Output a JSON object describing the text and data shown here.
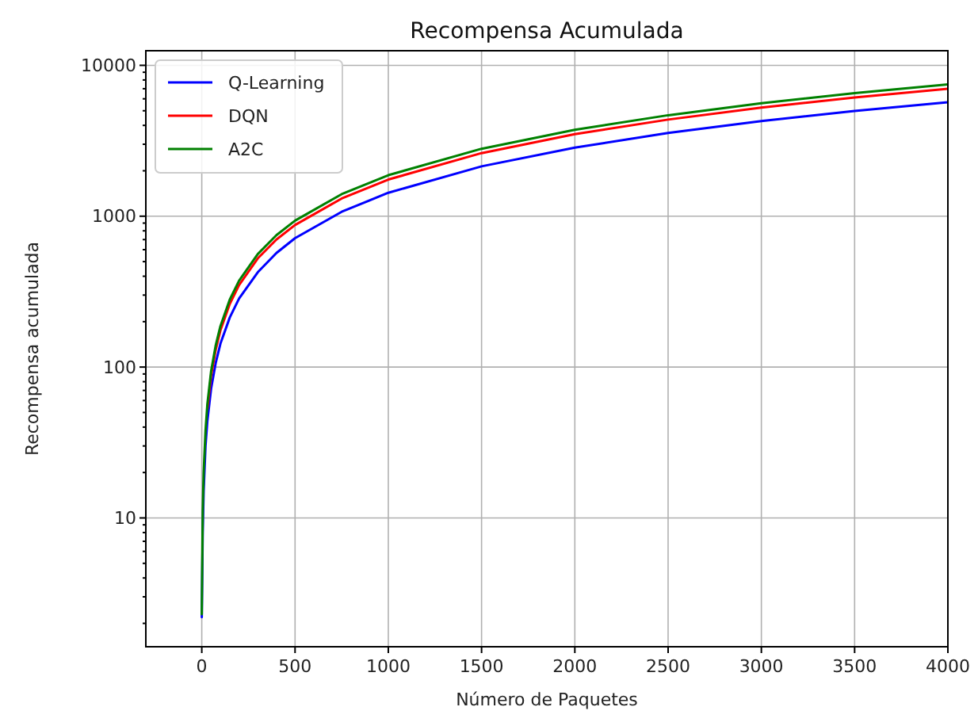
{
  "chart_data": {
    "type": "line",
    "title": "Recompensa Acumulada",
    "xlabel": "Número de Paquetes",
    "ylabel": "Recompensa acumulada",
    "log": "y",
    "grid": true,
    "legend": "top left",
    "line_style": "solid",
    "xlim": [
      -300,
      4000
    ],
    "xticks": [
      0,
      500,
      1000,
      1500,
      2000,
      2500,
      3000,
      3500,
      4000
    ],
    "ylim": [
      1.4,
      12500
    ],
    "yticks": [
      {
        "value": 2,
        "label": null
      },
      {
        "value": 3,
        "label": null
      },
      {
        "value": 4,
        "label": null
      },
      {
        "value": 5,
        "label": null
      },
      {
        "value": 6,
        "label": null
      },
      {
        "value": 7,
        "label": null
      },
      {
        "value": 8,
        "label": null
      },
      {
        "value": 9,
        "label": null
      },
      10,
      {
        "value": 20,
        "label": null
      },
      {
        "value": 30,
        "label": null
      },
      {
        "value": 40,
        "label": null
      },
      {
        "value": 50,
        "label": null
      },
      {
        "value": 60,
        "label": null
      },
      {
        "value": 70,
        "label": null
      },
      {
        "value": 80,
        "label": null
      },
      {
        "value": 90,
        "label": null
      },
      100,
      {
        "value": 200,
        "label": null
      },
      {
        "value": 300,
        "label": null
      },
      {
        "value": 400,
        "label": null
      },
      {
        "value": 500,
        "label": null
      },
      {
        "value": 600,
        "label": null
      },
      {
        "value": 700,
        "label": null
      },
      {
        "value": 800,
        "label": null
      },
      {
        "value": 900,
        "label": null
      },
      1000,
      {
        "value": 2000,
        "label": null
      },
      {
        "value": 3000,
        "label": null
      },
      {
        "value": 4000,
        "label": null
      },
      {
        "value": 5000,
        "label": null
      },
      {
        "value": 6000,
        "label": null
      },
      {
        "value": 7000,
        "label": null
      },
      {
        "value": 8000,
        "label": null
      },
      {
        "value": 9000,
        "label": null
      },
      10000
    ],
    "x": [
      0,
      5,
      10,
      20,
      30,
      50,
      75,
      100,
      150,
      200,
      300,
      400,
      500,
      750,
      1000,
      1500,
      2000,
      2500,
      3000,
      3500,
      4000
    ],
    "series": [
      {
        "name": "Q-Learning",
        "color": "#0000ff",
        "values": [
          2.2,
          8,
          15,
          30,
          44,
          72,
          107,
          143,
          213,
          285,
          425,
          570,
          715,
          1070,
          1430,
          2140,
          2850,
          3560,
          4270,
          4980,
          5700
        ]
      },
      {
        "name": "DQN",
        "color": "#ff0000",
        "values": [
          null,
          null,
          null,
          null,
          53,
          88,
          131,
          175,
          262,
          350,
          525,
          700,
          875,
          1310,
          1750,
          2620,
          3500,
          4370,
          5250,
          6120,
          7000
        ]
      },
      {
        "name": "A2C",
        "color": "#008000",
        "values": [
          2.3,
          11,
          20,
          38,
          57,
          94,
          140,
          187,
          280,
          374,
          561,
          748,
          935,
          1400,
          1870,
          2800,
          3740,
          4670,
          5610,
          6540,
          7480
        ]
      }
    ]
  }
}
